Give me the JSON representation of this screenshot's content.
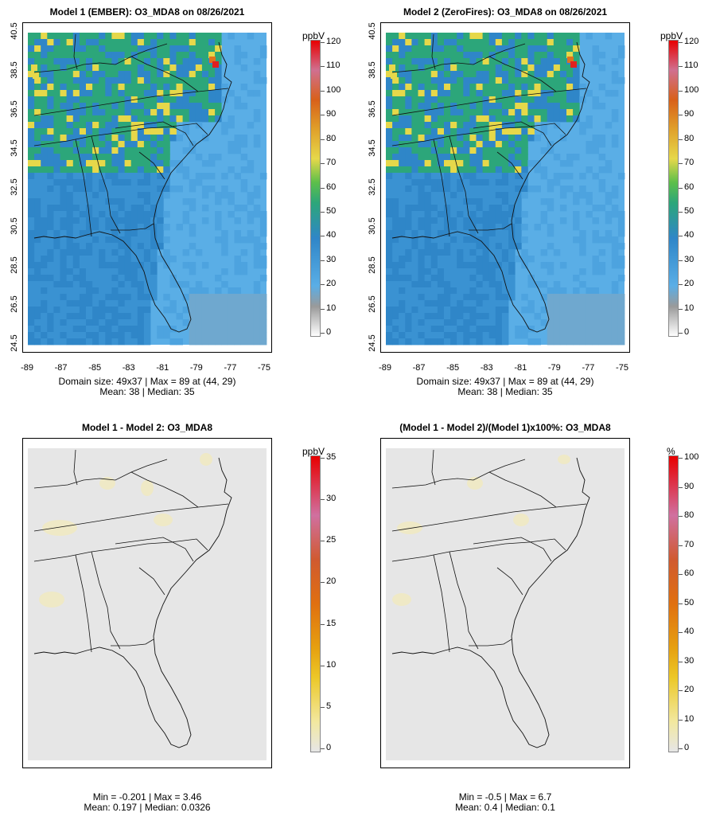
{
  "panels": [
    {
      "id": "p1",
      "title": "Model 1 (EMBER): O3_MDA8 on 08/26/2021",
      "unit": "ppbV",
      "colorbar_ticks": [
        "120",
        "110",
        "100",
        "90",
        "80",
        "70",
        "60",
        "50",
        "40",
        "30",
        "20",
        "10",
        "0"
      ],
      "colorbar_type": "concentration",
      "stats_line1": "Domain size: 49x37 | Max = 89 at (44, 29)",
      "stats_line2": "Mean: 38 |  Median: 35",
      "y_ticks": [
        "40.5",
        "38.5",
        "36.5",
        "34.5",
        "32.5",
        "30.5",
        "28.5",
        "26.5",
        "24.5"
      ],
      "x_ticks": [
        "-89",
        "-87",
        "-85",
        "-83",
        "-81",
        "-79",
        "-77",
        "-75"
      ],
      "field": "concentration"
    },
    {
      "id": "p2",
      "title": "Model 2 (ZeroFires): O3_MDA8 on 08/26/2021",
      "unit": "ppbV",
      "colorbar_ticks": [
        "120",
        "110",
        "100",
        "90",
        "80",
        "70",
        "60",
        "50",
        "40",
        "30",
        "20",
        "10",
        "0"
      ],
      "colorbar_type": "concentration",
      "stats_line1": "Domain size: 49x37 | Max = 89 at (44, 29)",
      "stats_line2": "Mean: 38 |  Median: 35",
      "y_ticks": [
        "40.5",
        "38.5",
        "36.5",
        "34.5",
        "32.5",
        "30.5",
        "28.5",
        "26.5",
        "24.5"
      ],
      "x_ticks": [
        "-89",
        "-87",
        "-85",
        "-83",
        "-81",
        "-79",
        "-77",
        "-75"
      ],
      "field": "concentration"
    },
    {
      "id": "p3",
      "title": "Model 1 - Model 2: O3_MDA8",
      "unit": "ppbV",
      "colorbar_ticks": [
        "35",
        "30",
        "25",
        "20",
        "15",
        "10",
        "5",
        "0"
      ],
      "colorbar_type": "difference",
      "stats_line1": "Min = -0.201 | Max = 3.46",
      "stats_line2": "Mean: 0.197 |  Median: 0.0326",
      "y_ticks": [],
      "x_ticks": [],
      "field": "difference"
    },
    {
      "id": "p4",
      "title": "(Model 1 - Model 2)/(Model 1)x100%: O3_MDA8",
      "unit": "%",
      "colorbar_ticks": [
        "100",
        "90",
        "80",
        "70",
        "60",
        "50",
        "40",
        "30",
        "20",
        "10",
        "0"
      ],
      "colorbar_type": "difference",
      "stats_line1": "Min = -0.5 | Max = 6.7",
      "stats_line2": "Mean: 0.4 |  Median: 0.1",
      "y_ticks": [],
      "x_ticks": [],
      "field": "percent"
    }
  ],
  "colors": {
    "ocean_blue": "#5aaee6",
    "land_blue": "#2f86c8",
    "green": "#2ca67a",
    "yellow": "#e6d84a",
    "orange": "#e0731d",
    "red": "#e02020",
    "diff_bg": "#e6e6e6",
    "diff_light_yellow": "#efe9c6"
  }
}
